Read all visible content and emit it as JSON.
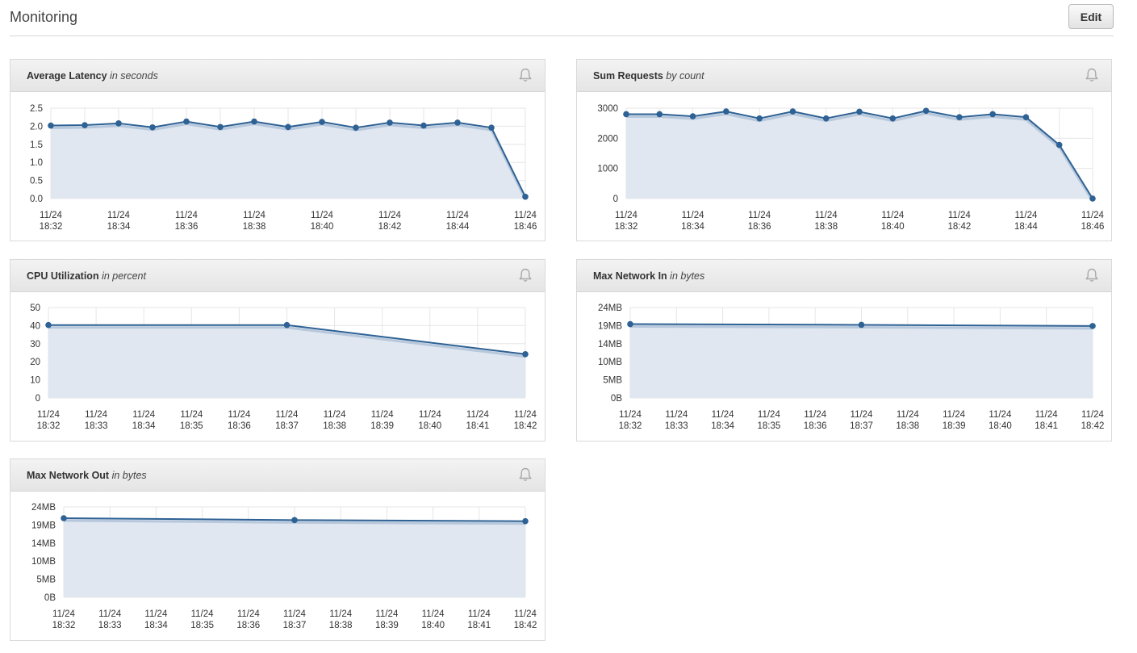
{
  "header": {
    "title": "Monitoring",
    "edit_label": "Edit"
  },
  "colors": {
    "line": "#2e6194",
    "fill": "#e0e7f0",
    "grid": "#e6e6e6"
  },
  "icons": {
    "alarm": "bell-icon"
  },
  "chart_data": [
    {
      "type": "area",
      "title": "Average Latency",
      "unit_label": "in seconds",
      "ylim": [
        0,
        2.5
      ],
      "yticks": [
        "2.5",
        "2.0",
        "1.5",
        "1.0",
        "0.5",
        "0.0"
      ],
      "ytick_values": [
        2.5,
        2.0,
        1.5,
        1.0,
        0.5,
        0.0
      ],
      "xlim": [
        0,
        14
      ],
      "xticks": [
        {
          "x": 0,
          "date": "11/24",
          "time": "18:32"
        },
        {
          "x": 2,
          "date": "11/24",
          "time": "18:34"
        },
        {
          "x": 4,
          "date": "11/24",
          "time": "18:36"
        },
        {
          "x": 6,
          "date": "11/24",
          "time": "18:38"
        },
        {
          "x": 8,
          "date": "11/24",
          "time": "18:40"
        },
        {
          "x": 10,
          "date": "11/24",
          "time": "18:42"
        },
        {
          "x": 12,
          "date": "11/24",
          "time": "18:44"
        },
        {
          "x": 14,
          "date": "11/24",
          "time": "18:46"
        }
      ],
      "grid_x": [
        0,
        1,
        2,
        3,
        4,
        5,
        6,
        7,
        8,
        9,
        10,
        11,
        12,
        13,
        14
      ],
      "x": [
        0,
        1,
        2,
        3,
        4,
        5,
        6,
        7,
        8,
        9,
        10,
        11,
        12,
        13,
        14
      ],
      "values": [
        2.02,
        2.03,
        2.08,
        1.97,
        2.13,
        1.98,
        2.13,
        1.98,
        2.12,
        1.96,
        2.1,
        2.02,
        2.1,
        1.96,
        0.05
      ]
    },
    {
      "type": "area",
      "title": "Sum Requests",
      "unit_label": "by count",
      "ylim": [
        0,
        3000
      ],
      "yticks": [
        "3000",
        "2000",
        "1000",
        "0"
      ],
      "ytick_values": [
        3000,
        2000,
        1000,
        0
      ],
      "xlim": [
        0,
        14
      ],
      "xticks": [
        {
          "x": 0,
          "date": "11/24",
          "time": "18:32"
        },
        {
          "x": 2,
          "date": "11/24",
          "time": "18:34"
        },
        {
          "x": 4,
          "date": "11/24",
          "time": "18:36"
        },
        {
          "x": 6,
          "date": "11/24",
          "time": "18:38"
        },
        {
          "x": 8,
          "date": "11/24",
          "time": "18:40"
        },
        {
          "x": 10,
          "date": "11/24",
          "time": "18:42"
        },
        {
          "x": 12,
          "date": "11/24",
          "time": "18:44"
        },
        {
          "x": 14,
          "date": "11/24",
          "time": "18:46"
        }
      ],
      "grid_x": [
        0,
        1,
        2,
        3,
        4,
        5,
        6,
        7,
        8,
        9,
        10,
        11,
        12,
        13,
        14
      ],
      "x": [
        0,
        1,
        2,
        3,
        4,
        5,
        6,
        7,
        8,
        9,
        10,
        11,
        12,
        13,
        14
      ],
      "values": [
        2800,
        2800,
        2730,
        2890,
        2660,
        2890,
        2660,
        2880,
        2660,
        2910,
        2700,
        2800,
        2700,
        1780,
        0
      ]
    },
    {
      "type": "area",
      "title": "CPU Utilization",
      "unit_label": "in percent",
      "ylim": [
        0,
        50
      ],
      "yticks": [
        "50",
        "40",
        "30",
        "20",
        "10",
        "0"
      ],
      "ytick_values": [
        50,
        40,
        30,
        20,
        10,
        0
      ],
      "xlim": [
        0,
        10
      ],
      "xticks": [
        {
          "x": 0,
          "date": "11/24",
          "time": "18:32"
        },
        {
          "x": 1,
          "date": "11/24",
          "time": "18:33"
        },
        {
          "x": 2,
          "date": "11/24",
          "time": "18:34"
        },
        {
          "x": 3,
          "date": "11/24",
          "time": "18:35"
        },
        {
          "x": 4,
          "date": "11/24",
          "time": "18:36"
        },
        {
          "x": 5,
          "date": "11/24",
          "time": "18:37"
        },
        {
          "x": 6,
          "date": "11/24",
          "time": "18:38"
        },
        {
          "x": 7,
          "date": "11/24",
          "time": "18:39"
        },
        {
          "x": 8,
          "date": "11/24",
          "time": "18:40"
        },
        {
          "x": 9,
          "date": "11/24",
          "time": "18:41"
        },
        {
          "x": 10,
          "date": "11/24",
          "time": "18:42"
        }
      ],
      "grid_x": [
        0,
        1,
        2,
        3,
        4,
        5,
        6,
        7,
        8,
        9,
        10
      ],
      "x": [
        0,
        5,
        10
      ],
      "values": [
        40.3,
        40.3,
        24.2
      ]
    },
    {
      "type": "area",
      "title": "Max Network In",
      "unit_label": "in bytes",
      "ylim": [
        0,
        24
      ],
      "yticks": [
        "24MB",
        "19MB",
        "14MB",
        "10MB",
        "5MB",
        "0B"
      ],
      "ytick_values": [
        24,
        19.2,
        14.4,
        9.6,
        4.8,
        0
      ],
      "xlim": [
        0,
        10
      ],
      "xticks": [
        {
          "x": 0,
          "date": "11/24",
          "time": "18:32"
        },
        {
          "x": 1,
          "date": "11/24",
          "time": "18:33"
        },
        {
          "x": 2,
          "date": "11/24",
          "time": "18:34"
        },
        {
          "x": 3,
          "date": "11/24",
          "time": "18:35"
        },
        {
          "x": 4,
          "date": "11/24",
          "time": "18:36"
        },
        {
          "x": 5,
          "date": "11/24",
          "time": "18:37"
        },
        {
          "x": 6,
          "date": "11/24",
          "time": "18:38"
        },
        {
          "x": 7,
          "date": "11/24",
          "time": "18:39"
        },
        {
          "x": 8,
          "date": "11/24",
          "time": "18:40"
        },
        {
          "x": 9,
          "date": "11/24",
          "time": "18:41"
        },
        {
          "x": 10,
          "date": "11/24",
          "time": "18:42"
        }
      ],
      "grid_x": [
        0,
        1,
        2,
        3,
        4,
        5,
        6,
        7,
        8,
        9,
        10
      ],
      "x": [
        0,
        5,
        10
      ],
      "values": [
        19.6,
        19.4,
        19.1
      ]
    },
    {
      "type": "area",
      "title": "Max Network Out",
      "unit_label": "in bytes",
      "ylim": [
        0,
        24
      ],
      "yticks": [
        "24MB",
        "19MB",
        "14MB",
        "10MB",
        "5MB",
        "0B"
      ],
      "ytick_values": [
        24,
        19.2,
        14.4,
        9.6,
        4.8,
        0
      ],
      "xlim": [
        0,
        10
      ],
      "xticks": [
        {
          "x": 0,
          "date": "11/24",
          "time": "18:32"
        },
        {
          "x": 1,
          "date": "11/24",
          "time": "18:33"
        },
        {
          "x": 2,
          "date": "11/24",
          "time": "18:34"
        },
        {
          "x": 3,
          "date": "11/24",
          "time": "18:35"
        },
        {
          "x": 4,
          "date": "11/24",
          "time": "18:36"
        },
        {
          "x": 5,
          "date": "11/24",
          "time": "18:37"
        },
        {
          "x": 6,
          "date": "11/24",
          "time": "18:38"
        },
        {
          "x": 7,
          "date": "11/24",
          "time": "18:39"
        },
        {
          "x": 8,
          "date": "11/24",
          "time": "18:40"
        },
        {
          "x": 9,
          "date": "11/24",
          "time": "18:41"
        },
        {
          "x": 10,
          "date": "11/24",
          "time": "18:42"
        }
      ],
      "grid_x": [
        0,
        1,
        2,
        3,
        4,
        5,
        6,
        7,
        8,
        9,
        10
      ],
      "x": [
        0,
        5,
        10
      ],
      "values": [
        21.0,
        20.5,
        20.2
      ]
    }
  ]
}
